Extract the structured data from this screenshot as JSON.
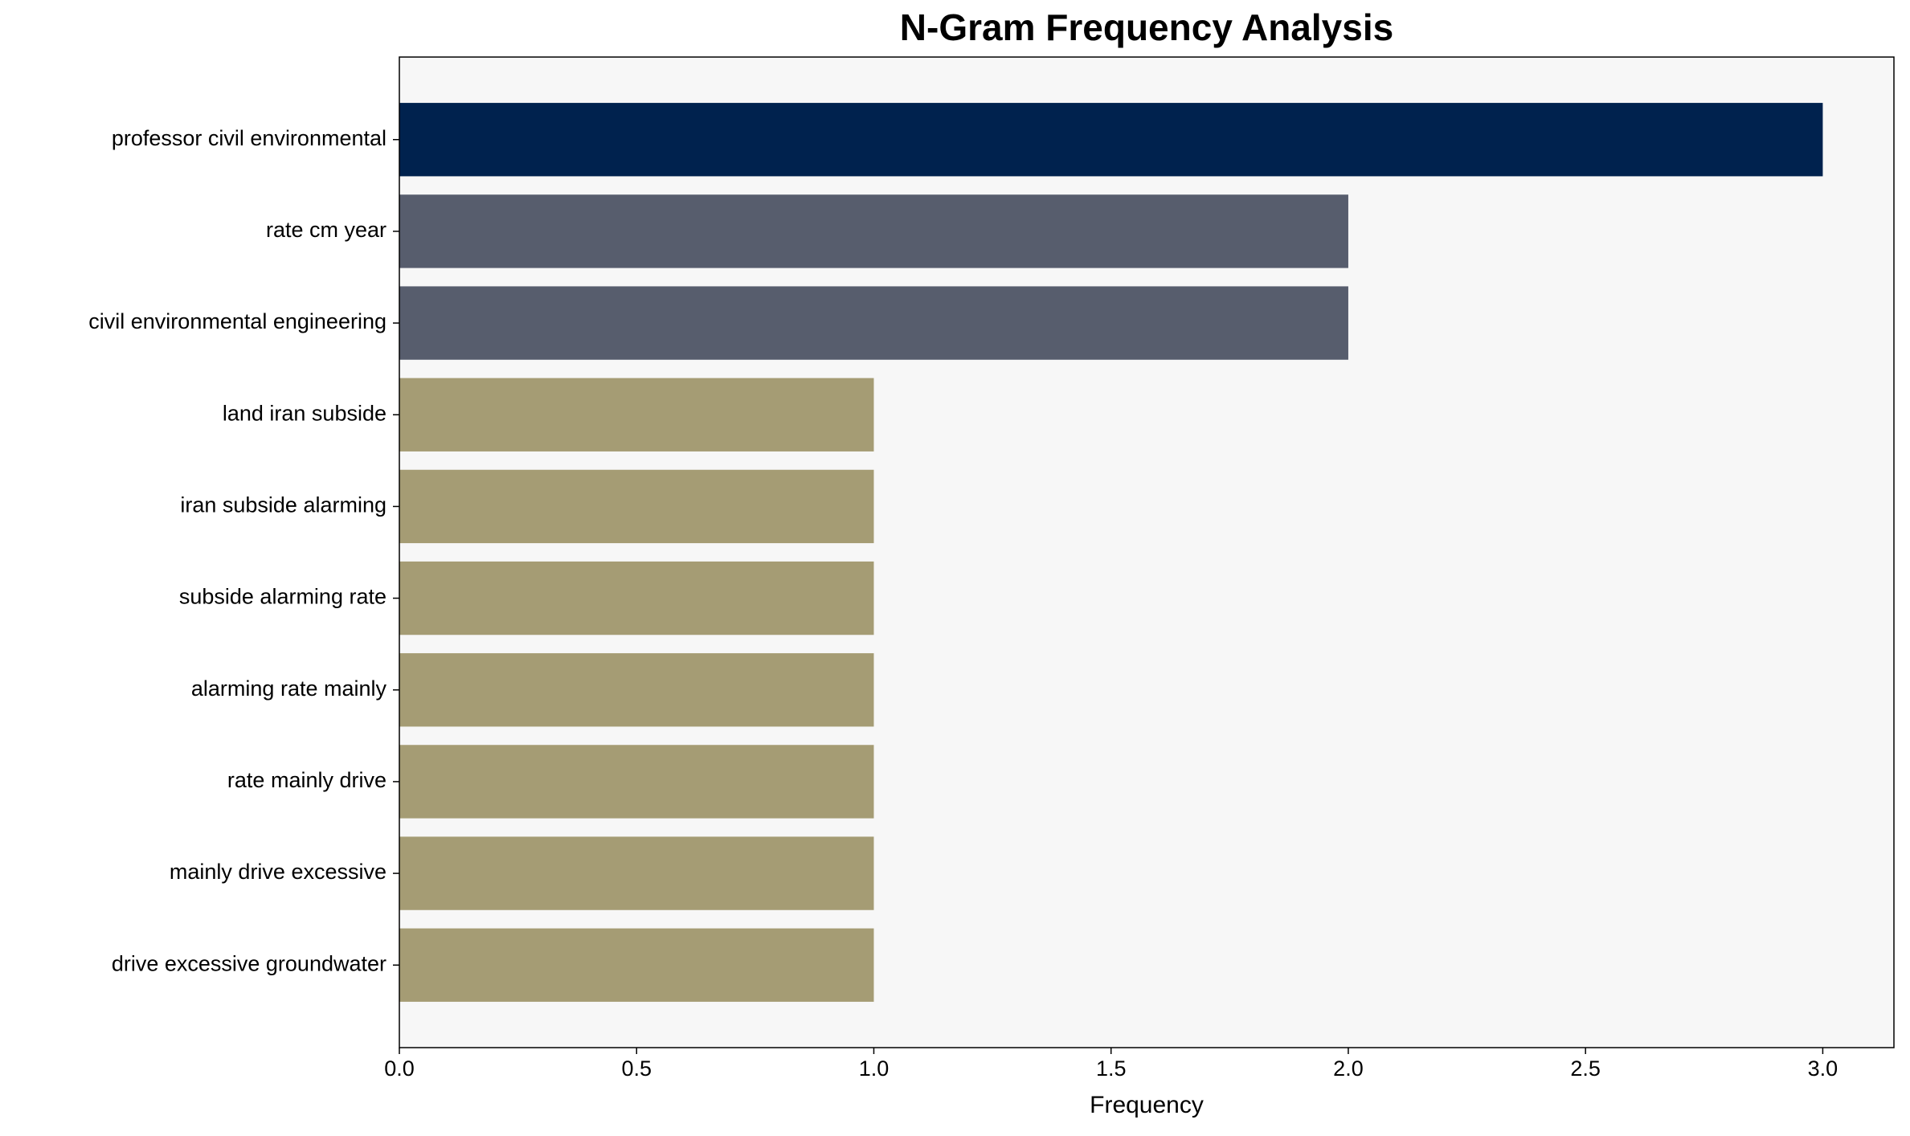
{
  "chart_data": {
    "type": "barh",
    "title": "N-Gram Frequency Analysis",
    "x_label": "Frequency",
    "categories": [
      "professor civil environmental",
      "rate cm year",
      "civil environmental engineering",
      "land iran subside",
      "iran subside alarming",
      "subside alarming rate",
      "alarming rate mainly",
      "rate mainly drive",
      "mainly drive excessive",
      "drive excessive groundwater"
    ],
    "values": [
      3,
      2,
      2,
      1,
      1,
      1,
      1,
      1,
      1,
      1
    ],
    "colors": [
      "#00224e",
      "#575d6d",
      "#575d6d",
      "#a59c74",
      "#a59c74",
      "#a59c74",
      "#a59c74",
      "#a59c74",
      "#a59c74",
      "#a59c74"
    ],
    "xlim": [
      0,
      3.15
    ],
    "xticks": [
      {
        "value": 0,
        "label": "0.0"
      },
      {
        "value": 0.5,
        "label": "0.5"
      },
      {
        "value": 1,
        "label": "1.0"
      },
      {
        "value": 1.5,
        "label": "1.5"
      },
      {
        "value": 2,
        "label": "2.0"
      },
      {
        "value": 2.5,
        "label": "2.5"
      },
      {
        "value": 3,
        "label": "3.0"
      }
    ],
    "grid": false
  }
}
